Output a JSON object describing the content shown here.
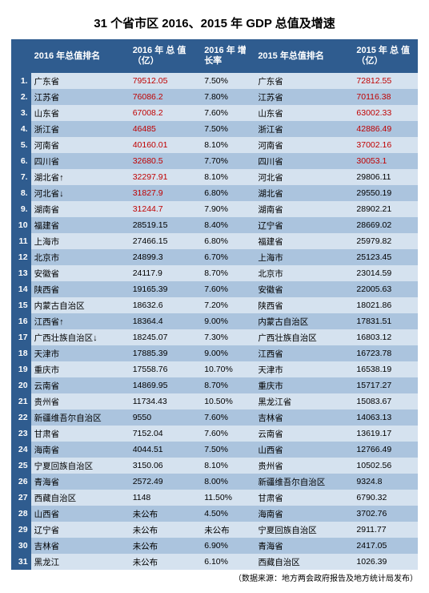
{
  "title": "31 个省市区 2016、2015 年 GDP 总值及增速",
  "footnote": "（数据来源：地方两会政府报告及地方统计局发布）",
  "headers": {
    "rank": "",
    "prov2016": "2016 年总值排名",
    "val2016": "2016 年 总 值（亿）",
    "growth2016": "2016 年 增 长率",
    "prov2015": "2015 年总值排名",
    "val2015": "2015 年 总 值（亿）"
  },
  "colors": {
    "header_bg": "#2f5c8f",
    "header_fg": "#ffffff",
    "row_odd_bg": "#d5e2ef",
    "row_even_bg": "#abc4de",
    "highlight_value": "#c00000",
    "text": "#000000"
  },
  "rows": [
    {
      "rank": "1.",
      "p16": "广东省",
      "arrow16": "",
      "v16": "79512.05",
      "v16_red": true,
      "g16": "7.50%",
      "p15": "广东省",
      "v15": "72812.55",
      "v15_red": true
    },
    {
      "rank": "2.",
      "p16": "江苏省",
      "arrow16": "",
      "v16": "76086.2",
      "v16_red": true,
      "g16": "7.80%",
      "p15": "江苏省",
      "v15": "70116.38",
      "v15_red": true
    },
    {
      "rank": "3.",
      "p16": "山东省",
      "arrow16": "",
      "v16": "67008.2",
      "v16_red": true,
      "g16": "7.60%",
      "p15": "山东省",
      "v15": "63002.33",
      "v15_red": true
    },
    {
      "rank": "4.",
      "p16": "浙江省",
      "arrow16": "",
      "v16": "46485",
      "v16_red": true,
      "g16": "7.50%",
      "p15": "浙江省",
      "v15": "42886.49",
      "v15_red": true
    },
    {
      "rank": "5.",
      "p16": "河南省",
      "arrow16": "",
      "v16": "40160.01",
      "v16_red": true,
      "g16": "8.10%",
      "p15": "河南省",
      "v15": "37002.16",
      "v15_red": true
    },
    {
      "rank": "6.",
      "p16": "四川省",
      "arrow16": "",
      "v16": "32680.5",
      "v16_red": true,
      "g16": "7.70%",
      "p15": "四川省",
      "v15": "30053.1",
      "v15_red": true
    },
    {
      "rank": "7.",
      "p16": "湖北省",
      "arrow16": "up",
      "v16": "32297.91",
      "v16_red": true,
      "g16": "8.10%",
      "p15": "河北省",
      "v15": "29806.11",
      "v15_red": false
    },
    {
      "rank": "8.",
      "p16": "河北省",
      "arrow16": "down",
      "v16": "31827.9",
      "v16_red": true,
      "g16": "6.80%",
      "p15": "湖北省",
      "v15": "29550.19",
      "v15_red": false
    },
    {
      "rank": "9.",
      "p16": "湖南省",
      "arrow16": "",
      "v16": "31244.7",
      "v16_red": true,
      "g16": "7.90%",
      "p15": "湖南省",
      "v15": "28902.21",
      "v15_red": false
    },
    {
      "rank": "10",
      "p16": "福建省",
      "arrow16": "",
      "v16": "28519.15",
      "v16_red": false,
      "g16": "8.40%",
      "p15": "辽宁省",
      "v15": "28669.02",
      "v15_red": false
    },
    {
      "rank": "11",
      "p16": "上海市",
      "arrow16": "",
      "v16": "27466.15",
      "v16_red": false,
      "g16": "6.80%",
      "p15": "福建省",
      "v15": "25979.82",
      "v15_red": false
    },
    {
      "rank": "12",
      "p16": "北京市",
      "arrow16": "",
      "v16": "24899.3",
      "v16_red": false,
      "g16": "6.70%",
      "p15": "上海市",
      "v15": "25123.45",
      "v15_red": false
    },
    {
      "rank": "13",
      "p16": "安徽省",
      "arrow16": "",
      "v16": "24117.9",
      "v16_red": false,
      "g16": "8.70%",
      "p15": "北京市",
      "v15": "23014.59",
      "v15_red": false
    },
    {
      "rank": "14",
      "p16": "陕西省",
      "arrow16": "",
      "v16": "19165.39",
      "v16_red": false,
      "g16": "7.60%",
      "p15": "安徽省",
      "v15": "22005.63",
      "v15_red": false
    },
    {
      "rank": "15",
      "p16": "内蒙古自治区",
      "arrow16": "",
      "v16": "18632.6",
      "v16_red": false,
      "g16": "7.20%",
      "p15": "陕西省",
      "v15": "18021.86",
      "v15_red": false
    },
    {
      "rank": "16",
      "p16": "江西省",
      "arrow16": "up",
      "v16": "18364.4",
      "v16_red": false,
      "g16": "9.00%",
      "p15": "内蒙古自治区",
      "v15": "17831.51",
      "v15_red": false
    },
    {
      "rank": "17",
      "p16": "广西壮族自治区",
      "arrow16": "down",
      "v16": "18245.07",
      "v16_red": false,
      "g16": "7.30%",
      "p15": "广西壮族自治区",
      "v15": "16803.12",
      "v15_red": false
    },
    {
      "rank": "18",
      "p16": "天津市",
      "arrow16": "",
      "v16": "17885.39",
      "v16_red": false,
      "g16": "9.00%",
      "p15": "江西省",
      "v15": "16723.78",
      "v15_red": false
    },
    {
      "rank": "19",
      "p16": "重庆市",
      "arrow16": "",
      "v16": "17558.76",
      "v16_red": false,
      "g16": "10.70%",
      "p15": "天津市",
      "v15": "16538.19",
      "v15_red": false
    },
    {
      "rank": "20",
      "p16": "云南省",
      "arrow16": "",
      "v16": "14869.95",
      "v16_red": false,
      "g16": "8.70%",
      "p15": "重庆市",
      "v15": "15717.27",
      "v15_red": false
    },
    {
      "rank": "21",
      "p16": "贵州省",
      "arrow16": "",
      "v16": "11734.43",
      "v16_red": false,
      "g16": "10.50%",
      "p15": "黑龙江省",
      "v15": "15083.67",
      "v15_red": false
    },
    {
      "rank": "22",
      "p16": "新疆维吾尔自治区",
      "arrow16": "",
      "v16": "9550",
      "v16_red": false,
      "g16": "7.60%",
      "p15": "吉林省",
      "v15": "14063.13",
      "v15_red": false
    },
    {
      "rank": "23",
      "p16": "甘肃省",
      "arrow16": "",
      "v16": "7152.04",
      "v16_red": false,
      "g16": "7.60%",
      "p15": "云南省",
      "v15": "13619.17",
      "v15_red": false
    },
    {
      "rank": "24",
      "p16": "海南省",
      "arrow16": "",
      "v16": "4044.51",
      "v16_red": false,
      "g16": "7.50%",
      "p15": "山西省",
      "v15": "12766.49",
      "v15_red": false
    },
    {
      "rank": "25",
      "p16": "宁夏回族自治区",
      "arrow16": "",
      "v16": "3150.06",
      "v16_red": false,
      "g16": "8.10%",
      "p15": "贵州省",
      "v15": "10502.56",
      "v15_red": false
    },
    {
      "rank": "26",
      "p16": "青海省",
      "arrow16": "",
      "v16": "2572.49",
      "v16_red": false,
      "g16": "8.00%",
      "p15": "新疆维吾尔自治区",
      "v15": "9324.8",
      "v15_red": false
    },
    {
      "rank": "27",
      "p16": "西藏自治区",
      "arrow16": "",
      "v16": "1148",
      "v16_red": false,
      "g16": "11.50%",
      "p15": "甘肃省",
      "v15": "6790.32",
      "v15_red": false
    },
    {
      "rank": "28",
      "p16": "山西省",
      "arrow16": "",
      "v16": "未公布",
      "v16_red": false,
      "g16": "4.50%",
      "p15": "海南省",
      "v15": "3702.76",
      "v15_red": false
    },
    {
      "rank": "29",
      "p16": "辽宁省",
      "arrow16": "",
      "v16": "未公布",
      "v16_red": false,
      "g16": "未公布",
      "p15": "宁夏回族自治区",
      "v15": "2911.77",
      "v15_red": false
    },
    {
      "rank": "30",
      "p16": "吉林省",
      "arrow16": "",
      "v16": "未公布",
      "v16_red": false,
      "g16": "6.90%",
      "p15": "青海省",
      "v15": "2417.05",
      "v15_red": false
    },
    {
      "rank": "31",
      "p16": "黑龙江",
      "arrow16": "",
      "v16": "未公布",
      "v16_red": false,
      "g16": "6.10%",
      "p15": "西藏自治区",
      "v15": "1026.39",
      "v15_red": false
    }
  ]
}
